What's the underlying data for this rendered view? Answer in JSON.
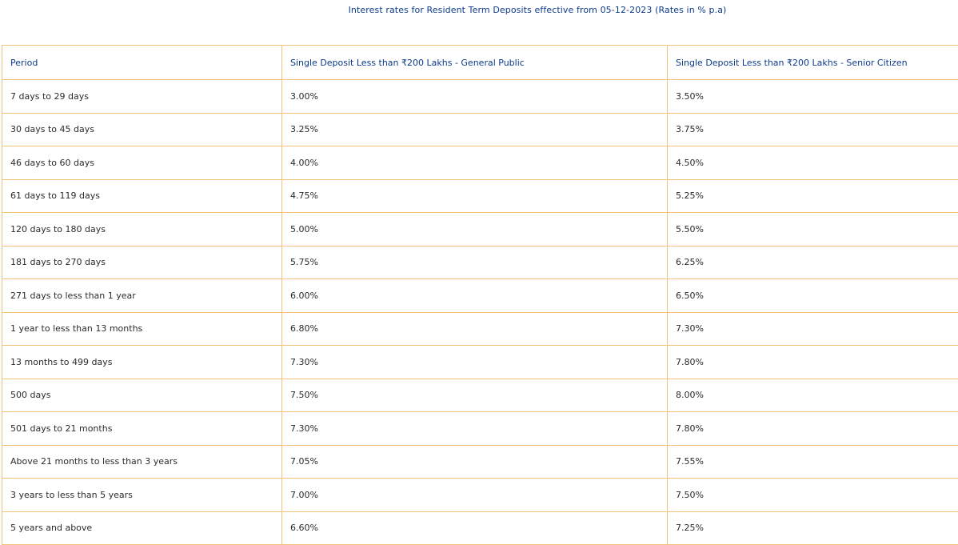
{
  "title": "Interest rates for Resident Term Deposits effective from 05-12-2023 (Rates in % p.a)",
  "table": {
    "headers": [
      "Period",
      "Single Deposit Less than ₹200 Lakhs - General Public",
      "Single Deposit Less than ₹200 Lakhs - Senior Citizen"
    ],
    "rows": [
      [
        "7 days to 29 days",
        "3.00%",
        "3.50%"
      ],
      [
        "30 days to 45 days",
        "3.25%",
        "3.75%"
      ],
      [
        "46 days to 60 days",
        "4.00%",
        "4.50%"
      ],
      [
        "61 days to 119 days",
        "4.75%",
        "5.25%"
      ],
      [
        "120 days to 180 days",
        "5.00%",
        "5.50%"
      ],
      [
        "181 days to 270 days",
        "5.75%",
        "6.25%"
      ],
      [
        "271 days to less than 1 year",
        "6.00%",
        "6.50%"
      ],
      [
        "1 year to less than 13 months",
        "6.80%",
        "7.30%"
      ],
      [
        "13 months to 499 days",
        "7.30%",
        "7.80%"
      ],
      [
        "500 days",
        "7.50%",
        "8.00%"
      ],
      [
        "501 days to 21 months",
        "7.30%",
        "7.80%"
      ],
      [
        "Above 21 months to less than 3 years",
        "7.05%",
        "7.55%"
      ],
      [
        "3 years to less than 5 years",
        "7.00%",
        "7.50%"
      ],
      [
        "5 years and above",
        "6.60%",
        "7.25%"
      ]
    ]
  },
  "colors": {
    "header_text": "#0d3a8a",
    "cell_text": "#2b2b2b",
    "border": "#f3c27a"
  }
}
